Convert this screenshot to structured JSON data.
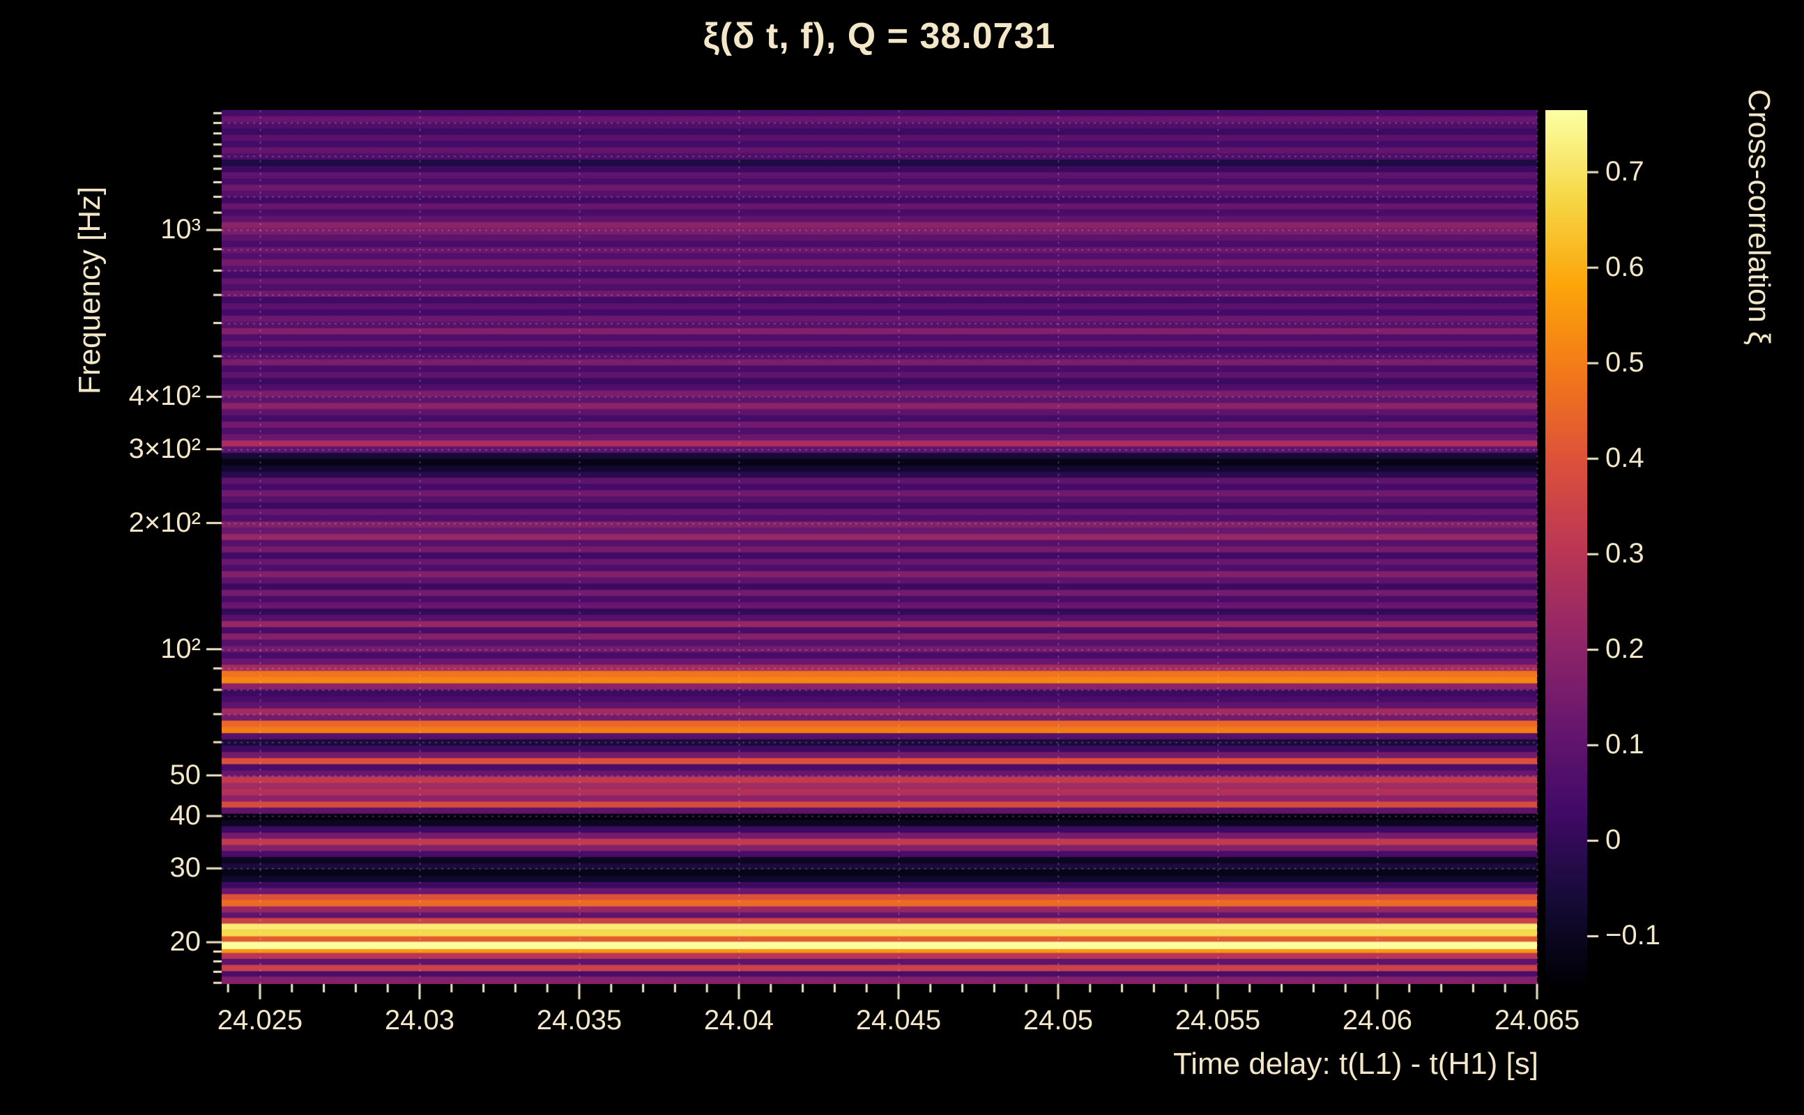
{
  "chart_data": {
    "type": "heatmap",
    "title": "ξ(δ t, f), Q = 38.0731",
    "q_value": 38.0731,
    "xlabel": "Time delay: t(L1) - t(H1) [s]",
    "ylabel": "Frequency [Hz]",
    "colorbar_label": "Cross-correlation ξ",
    "x_range": [
      24.0238,
      24.065
    ],
    "y_range": [
      15.9,
      1932
    ],
    "y_scale": "log",
    "x_scale": "linear",
    "grid": true,
    "color_range": [
      -0.15,
      0.765
    ],
    "x_ticks": {
      "values": [
        24.025,
        24.03,
        24.035,
        24.04,
        24.045,
        24.05,
        24.055,
        24.06,
        24.065
      ],
      "labels": [
        "24.025",
        "24.03",
        "24.035",
        "24.04",
        "24.045",
        "24.05",
        "24.055",
        "24.06",
        "24.065"
      ]
    },
    "y_ticks": {
      "values": [
        20,
        30,
        40,
        50,
        100,
        200,
        300,
        400,
        1000
      ],
      "labels": [
        "20",
        "30",
        "40",
        "50",
        "10²",
        "2×10²",
        "3×10²",
        "4×10²",
        "10³"
      ]
    },
    "colorbar_ticks": {
      "values": [
        0.7,
        0.6,
        0.5,
        0.4,
        0.3,
        0.2,
        0.1,
        0,
        -0.1
      ],
      "labels": [
        "0.7",
        "0.6",
        "0.5",
        "0.4",
        "0.3",
        "0.2",
        "0.1",
        "0",
        "−0.1"
      ]
    },
    "palette": {
      "name": "inferno",
      "stops": [
        "#000004",
        "#160b39",
        "#420a68",
        "#6a176e",
        "#932667",
        "#bc3754",
        "#dd513a",
        "#f37819",
        "#fca50a",
        "#f6d746",
        "#fcffa4"
      ]
    },
    "text_color": "#f3e7c8",
    "background": "#000000",
    "f_max": 1932,
    "bands": [
      [
        15.9,
        0.18
      ],
      [
        16.6,
        0.05
      ],
      [
        17.1,
        0.35
      ],
      [
        17.7,
        0.1
      ],
      [
        18.3,
        0.3
      ],
      [
        18.9,
        0.55
      ],
      [
        19.3,
        0.76
      ],
      [
        20.1,
        0.42
      ],
      [
        20.7,
        0.68
      ],
      [
        21.5,
        0.72
      ],
      [
        22.2,
        0.35
      ],
      [
        22.9,
        0.1
      ],
      [
        23.6,
        0.22
      ],
      [
        24.4,
        0.46
      ],
      [
        25.3,
        0.4
      ],
      [
        26.1,
        0.12
      ],
      [
        27.0,
        0.02
      ],
      [
        27.9,
        -0.08
      ],
      [
        28.9,
        -0.12
      ],
      [
        29.9,
        -0.05
      ],
      [
        30.9,
        -0.1
      ],
      [
        32.0,
        0.05
      ],
      [
        33.1,
        0.18
      ],
      [
        34.2,
        0.32
      ],
      [
        35.4,
        0.15
      ],
      [
        36.6,
        0.02
      ],
      [
        37.9,
        -0.1
      ],
      [
        39.2,
        -0.13
      ],
      [
        40.6,
        0.1
      ],
      [
        42.0,
        0.38
      ],
      [
        43.4,
        0.2
      ],
      [
        44.9,
        0.28
      ],
      [
        46.5,
        0.25
      ],
      [
        48.1,
        0.32
      ],
      [
        49.8,
        0.12
      ],
      [
        51.5,
        0.05
      ],
      [
        53.3,
        0.4
      ],
      [
        55.1,
        0.15
      ],
      [
        57.0,
        0.02
      ],
      [
        59.0,
        -0.05
      ],
      [
        61.1,
        0.08
      ],
      [
        63.2,
        0.5
      ],
      [
        65.4,
        0.45
      ],
      [
        67.7,
        0.15
      ],
      [
        70.0,
        0.25
      ],
      [
        72.4,
        0.1
      ],
      [
        75.0,
        0.05
      ],
      [
        77.6,
        0.02
      ],
      [
        80.3,
        0.2
      ],
      [
        83.1,
        0.52
      ],
      [
        86.0,
        0.48
      ],
      [
        89.0,
        0.25
      ],
      [
        92.1,
        0.12
      ],
      [
        95.3,
        0.05
      ],
      [
        98.6,
        0.15
      ],
      [
        102.0,
        0.08
      ],
      [
        105.6,
        0.18
      ],
      [
        109.3,
        0.05
      ],
      [
        113.1,
        0.22
      ],
      [
        117.0,
        0.08
      ],
      [
        121.1,
        0.0
      ],
      [
        125.3,
        0.12
      ],
      [
        129.7,
        0.05
      ],
      [
        134.2,
        0.15
      ],
      [
        138.9,
        0.02
      ],
      [
        143.7,
        0.1
      ],
      [
        148.7,
        0.18
      ],
      [
        153.9,
        0.06
      ],
      [
        159.2,
        0.12
      ],
      [
        164.8,
        0.03
      ],
      [
        170.5,
        0.15
      ],
      [
        176.4,
        0.08
      ],
      [
        182.6,
        0.22
      ],
      [
        188.9,
        0.12
      ],
      [
        195.5,
        0.18
      ],
      [
        202.3,
        0.06
      ],
      [
        209.4,
        0.12
      ],
      [
        216.7,
        0.02
      ],
      [
        224.2,
        0.08
      ],
      [
        232.0,
        0.14
      ],
      [
        240.1,
        0.04
      ],
      [
        248.4,
        0.1
      ],
      [
        257.1,
        -0.02
      ],
      [
        266.0,
        -0.08
      ],
      [
        275.3,
        -0.12
      ],
      [
        284.9,
        -0.06
      ],
      [
        294.8,
        0.1
      ],
      [
        305.1,
        0.26
      ],
      [
        315.7,
        0.12
      ],
      [
        326.7,
        0.06
      ],
      [
        338.1,
        0.14
      ],
      [
        349.9,
        0.04
      ],
      [
        362.1,
        0.1
      ],
      [
        374.7,
        0.2
      ],
      [
        387.7,
        0.1
      ],
      [
        401.2,
        0.16
      ],
      [
        415.2,
        0.06
      ],
      [
        429.7,
        0.02
      ],
      [
        444.6,
        0.1
      ],
      [
        460.1,
        0.05
      ],
      [
        476.2,
        0.16
      ],
      [
        492.8,
        0.08
      ],
      [
        509.9,
        0.03
      ],
      [
        527.7,
        0.12
      ],
      [
        546.1,
        0.06
      ],
      [
        565.1,
        0.18
      ],
      [
        584.8,
        0.08
      ],
      [
        605.2,
        0.13
      ],
      [
        626.3,
        0.04
      ],
      [
        648.1,
        0.09
      ],
      [
        670.7,
        0.03
      ],
      [
        694.1,
        0.14
      ],
      [
        718.3,
        0.06
      ],
      [
        743.3,
        0.11
      ],
      [
        769.2,
        0.04
      ],
      [
        796.0,
        0.09
      ],
      [
        823.8,
        0.15
      ],
      [
        852.5,
        0.07
      ],
      [
        882.2,
        0.12
      ],
      [
        913.0,
        0.05
      ],
      [
        944.8,
        0.1
      ],
      [
        977.7,
        0.16
      ],
      [
        1012,
        0.2
      ],
      [
        1047,
        0.1
      ],
      [
        1084,
        0.05
      ],
      [
        1122,
        0.12
      ],
      [
        1161,
        0.03
      ],
      [
        1201,
        0.08
      ],
      [
        1243,
        0.13
      ],
      [
        1286,
        0.05
      ],
      [
        1331,
        0.1
      ],
      [
        1377,
        0.02
      ],
      [
        1425,
        -0.04
      ],
      [
        1475,
        0.06
      ],
      [
        1526,
        0.11
      ],
      [
        1579,
        0.04
      ],
      [
        1634,
        0.09
      ],
      [
        1691,
        0.02
      ],
      [
        1750,
        0.07
      ],
      [
        1811,
        0.12
      ],
      [
        1874,
        0.05
      ]
    ]
  }
}
